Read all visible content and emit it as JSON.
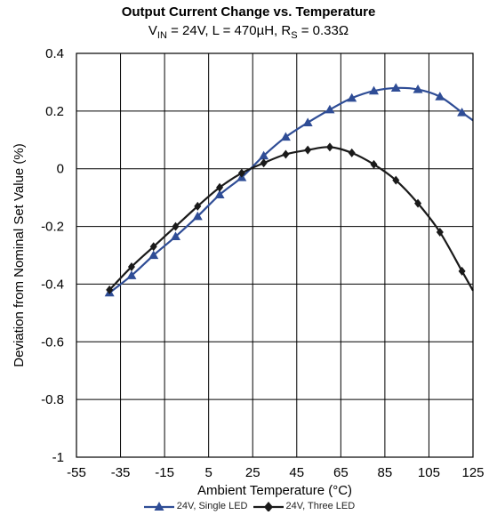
{
  "chart_data": {
    "type": "line",
    "title": "Output Current Change vs. Temperature",
    "subtitle": {
      "vin_prefix": "V",
      "vin_sub": "IN",
      "mid": " = 24V, L = 470µH, R",
      "rs_sub": "S",
      "end": " = 0.33Ω"
    },
    "xlabel": "Ambient Temperature (°C)",
    "ylabel": "Deviation from Nominal Set Value (%)",
    "xlim": [
      -55,
      125
    ],
    "ylim": [
      -1,
      0.4
    ],
    "xticks": [
      -55,
      -35,
      -15,
      5,
      25,
      45,
      65,
      85,
      105,
      125
    ],
    "yticks": [
      0.4,
      0.2,
      0,
      -0.2,
      -0.4,
      -0.6,
      -0.8,
      -1
    ],
    "ytick_labels": [
      "0.4",
      "0.2",
      "0",
      "-0.2",
      "-0.4",
      "-0.6",
      "-0.8",
      "-1"
    ],
    "grid": true,
    "legend_position": "bottom",
    "series": [
      {
        "name": "24V, Single LED",
        "color": "#2f4d96",
        "marker": "triangle",
        "x": [
          -40,
          -30,
          -20,
          -10,
          0,
          10,
          20,
          30,
          40,
          50,
          60,
          70,
          80,
          90,
          100,
          110,
          120
        ],
        "y": [
          -0.43,
          -0.37,
          -0.3,
          -0.235,
          -0.165,
          -0.09,
          -0.03,
          0.045,
          0.11,
          0.16,
          0.205,
          0.245,
          0.27,
          0.28,
          0.275,
          0.25,
          0.195
        ]
      },
      {
        "name": "24V, Three LED",
        "color": "#1a1a1a",
        "marker": "diamond",
        "x": [
          -40,
          -30,
          -20,
          -10,
          0,
          10,
          20,
          30,
          40,
          50,
          60,
          70,
          80,
          90,
          100,
          110,
          120
        ],
        "y": [
          -0.42,
          -0.34,
          -0.27,
          -0.2,
          -0.13,
          -0.065,
          -0.015,
          0.02,
          0.05,
          0.065,
          0.075,
          0.055,
          0.015,
          -0.04,
          -0.12,
          -0.22,
          -0.355
        ]
      }
    ]
  }
}
